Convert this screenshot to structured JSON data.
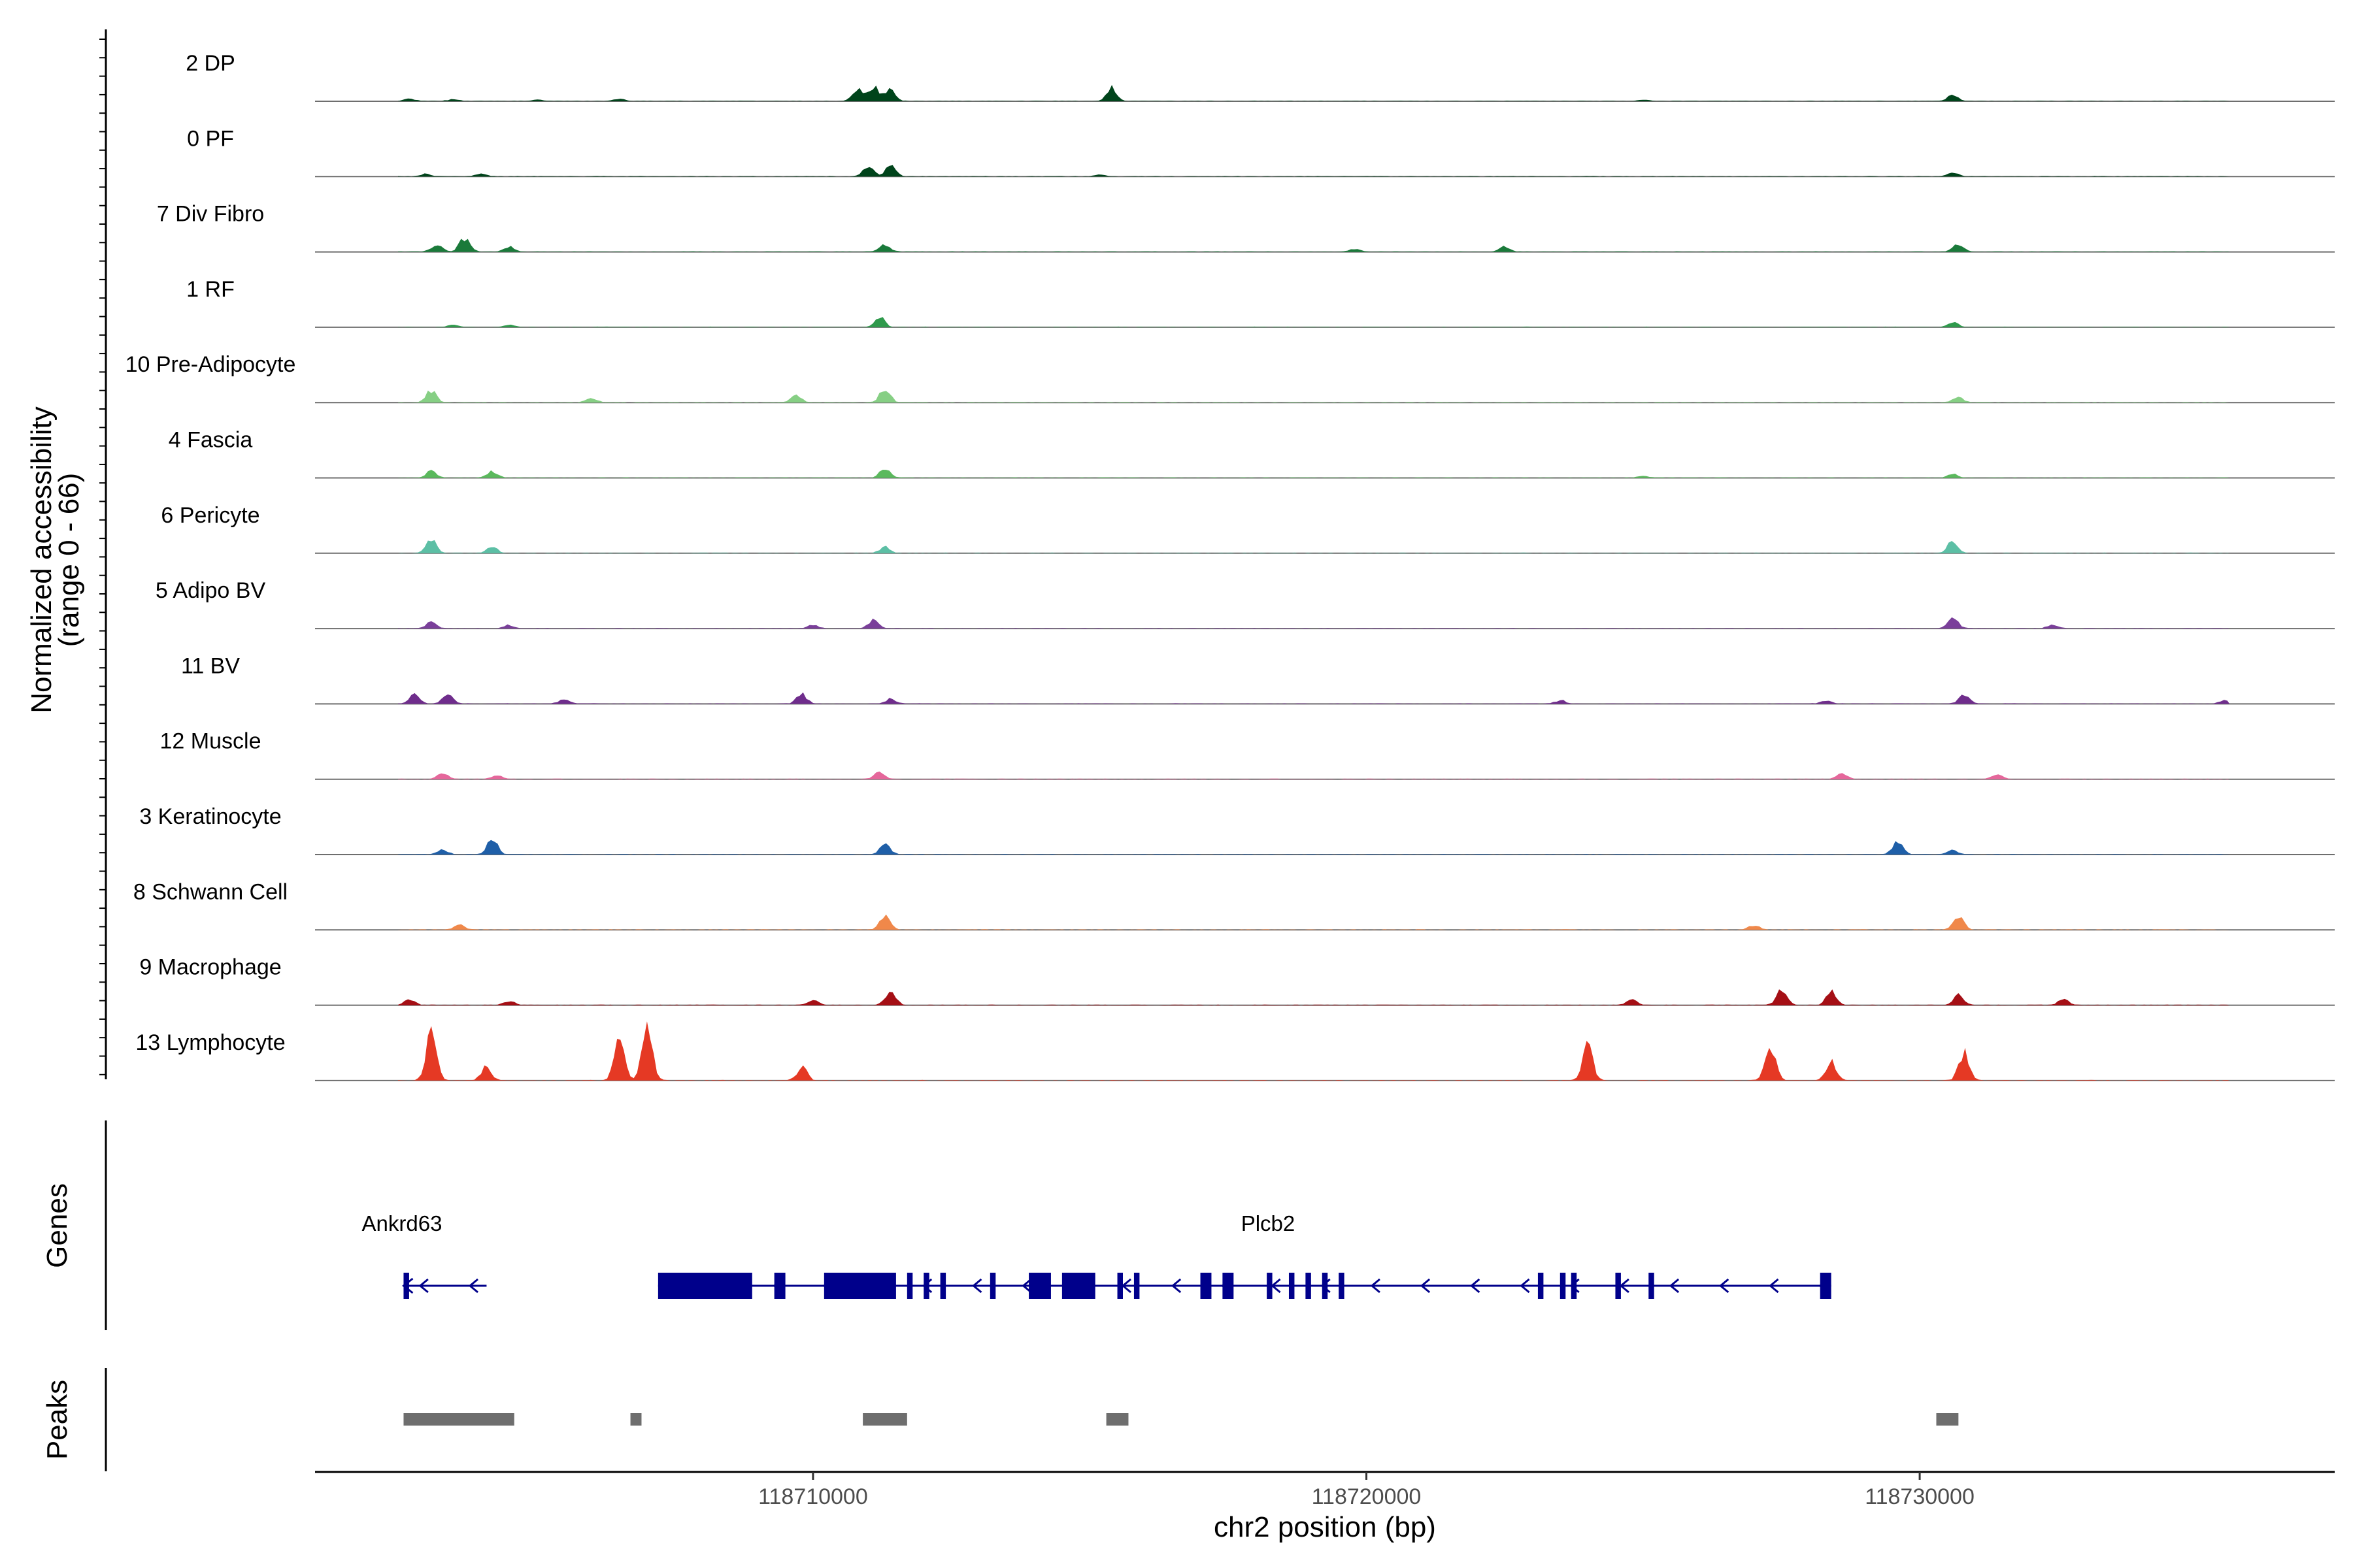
{
  "chart_data": {
    "type": "area",
    "title": "",
    "ylabel_line1": "Normalized accessibility",
    "ylabel_line2": "(range 0 - 66)",
    "ylim": [
      0,
      66
    ],
    "xlabel": "chr2 position (bp)",
    "xlim": [
      118701000,
      118737500
    ],
    "x_ticks": [
      118710000,
      118720000,
      118730000
    ],
    "x_tick_labels": [
      "118710000",
      "118720000",
      "118730000"
    ],
    "genes_label": "Genes",
    "peaks_label": "Peaks",
    "series": [
      {
        "name": "2 DP",
        "color": "#00441b",
        "peaks": [
          [
            118702700,
            0.6
          ],
          [
            118703500,
            0.5
          ],
          [
            118705000,
            0.4
          ],
          [
            118706500,
            0.5
          ],
          [
            118710800,
            3.0
          ],
          [
            118711100,
            3.4
          ],
          [
            118711400,
            2.6
          ],
          [
            118715400,
            3.2
          ],
          [
            118725000,
            0.4
          ],
          [
            118730600,
            1.5
          ]
        ]
      },
      {
        "name": "0 PF",
        "color": "#00441b",
        "peaks": [
          [
            118703000,
            0.6
          ],
          [
            118704000,
            0.7
          ],
          [
            118711000,
            2.4
          ],
          [
            118711400,
            2.4
          ],
          [
            118715200,
            0.4
          ],
          [
            118730600,
            0.8
          ]
        ]
      },
      {
        "name": "7 Div Fibro",
        "color": "#1a7a3a",
        "peaks": [
          [
            118703200,
            1.8
          ],
          [
            118703700,
            3.2
          ],
          [
            118704500,
            1.2
          ],
          [
            118711300,
            1.8
          ],
          [
            118719800,
            0.6
          ],
          [
            118722500,
            1.2
          ],
          [
            118730700,
            2.0
          ]
        ]
      },
      {
        "name": "1 RF",
        "color": "#2f9a4c",
        "peaks": [
          [
            118703500,
            0.6
          ],
          [
            118704500,
            0.5
          ],
          [
            118711200,
            2.4
          ],
          [
            118730600,
            1.2
          ]
        ]
      },
      {
        "name": "10 Pre-Adipocyte",
        "color": "#86cf84",
        "peaks": [
          [
            118703100,
            2.8
          ],
          [
            118706000,
            1.0
          ],
          [
            118709700,
            1.8
          ],
          [
            118711300,
            3.4
          ],
          [
            118730700,
            1.2
          ]
        ]
      },
      {
        "name": "4 Fascia",
        "color": "#5bb95d",
        "peaks": [
          [
            118703100,
            1.6
          ],
          [
            118704200,
            1.4
          ],
          [
            118711300,
            2.2
          ],
          [
            118725000,
            0.4
          ],
          [
            118730600,
            0.8
          ]
        ]
      },
      {
        "name": "6 Pericyte",
        "color": "#5cbfa5",
        "peaks": [
          [
            118703100,
            3.2
          ],
          [
            118704200,
            1.4
          ],
          [
            118711300,
            1.4
          ],
          [
            118730600,
            3.0
          ]
        ]
      },
      {
        "name": "5 Adipo BV",
        "color": "#7a3f9a",
        "peaks": [
          [
            118703100,
            1.4
          ],
          [
            118704500,
            0.8
          ],
          [
            118710000,
            0.8
          ],
          [
            118711100,
            2.2
          ],
          [
            118730600,
            2.4
          ],
          [
            118732400,
            0.8
          ]
        ]
      },
      {
        "name": "11 BV",
        "color": "#6f2d8c",
        "peaks": [
          [
            118702800,
            2.2
          ],
          [
            118703400,
            2.6
          ],
          [
            118705500,
            1.0
          ],
          [
            118709800,
            2.2
          ],
          [
            118711400,
            1.2
          ],
          [
            118723500,
            0.8
          ],
          [
            118728300,
            0.8
          ],
          [
            118730800,
            2.2
          ],
          [
            118735500,
            0.8
          ]
        ]
      },
      {
        "name": "12 Muscle",
        "color": "#e5679b",
        "peaks": [
          [
            118703300,
            1.4
          ],
          [
            118704300,
            1.0
          ],
          [
            118711200,
            1.8
          ],
          [
            118728600,
            1.4
          ],
          [
            118731400,
            1.2
          ]
        ]
      },
      {
        "name": "3 Keratinocyte",
        "color": "#1f5fa8",
        "peaks": [
          [
            118703300,
            1.2
          ],
          [
            118704200,
            3.6
          ],
          [
            118711300,
            2.4
          ],
          [
            118729600,
            2.8
          ],
          [
            118730600,
            1.0
          ]
        ]
      },
      {
        "name": "8 Schwann Cell",
        "color": "#f0884a",
        "peaks": [
          [
            118703600,
            1.2
          ],
          [
            118711300,
            3.0
          ],
          [
            118727000,
            1.0
          ],
          [
            118730700,
            3.0
          ]
        ]
      },
      {
        "name": "9 Macrophage",
        "color": "#a50f15",
        "peaks": [
          [
            118702700,
            1.4
          ],
          [
            118704500,
            1.0
          ],
          [
            118710000,
            1.2
          ],
          [
            118711400,
            3.2
          ],
          [
            118724800,
            1.2
          ],
          [
            118727500,
            3.4
          ],
          [
            118728400,
            3.0
          ],
          [
            118730700,
            2.4
          ],
          [
            118732600,
            1.4
          ]
        ]
      },
      {
        "name": "13 Lymphocyte",
        "color": "#e53924",
        "peaks": [
          [
            118703100,
            11.0
          ],
          [
            118704100,
            3.2
          ],
          [
            118706500,
            10.0
          ],
          [
            118707000,
            12.0
          ],
          [
            118709800,
            3.0
          ],
          [
            118724000,
            7.6
          ],
          [
            118727300,
            8.8
          ],
          [
            118728400,
            4.4
          ],
          [
            118730800,
            6.4
          ]
        ]
      }
    ],
    "genes": [
      {
        "name": "Ankrd63",
        "start": 118702600,
        "end": 118704100,
        "strand": "-",
        "exons": [
          [
            118702600,
            118702700
          ]
        ]
      },
      {
        "name": "Plcb2",
        "start": 118707200,
        "end": 118728400,
        "strand": "-",
        "exons": [
          [
            118707200,
            118708900
          ],
          [
            118709300,
            118709500
          ],
          [
            118710200,
            118711500
          ],
          [
            118711700,
            118711800
          ],
          [
            118712000,
            118712100
          ],
          [
            118712300,
            118712400
          ],
          [
            118713200,
            118713300
          ],
          [
            118713900,
            118714300
          ],
          [
            118714500,
            118715100
          ],
          [
            118715500,
            118715600
          ],
          [
            118715800,
            118715900
          ],
          [
            118717000,
            118717200
          ],
          [
            118717400,
            118717600
          ],
          [
            118718200,
            118718300
          ],
          [
            118718600,
            118718700
          ],
          [
            118718900,
            118719000
          ],
          [
            118719200,
            118719300
          ],
          [
            118719500,
            118719600
          ],
          [
            118723100,
            118723200
          ],
          [
            118723500,
            118723600
          ],
          [
            118723700,
            118723800
          ],
          [
            118724500,
            118724600
          ],
          [
            118725100,
            118725200
          ],
          [
            118728200,
            118728400
          ]
        ]
      }
    ],
    "gene_peaks": [
      [
        118702600,
        118704600
      ],
      [
        118706700,
        118706900
      ],
      [
        118710900,
        118711700
      ],
      [
        118715300,
        118715700
      ],
      [
        118730300,
        118730700
      ]
    ]
  }
}
